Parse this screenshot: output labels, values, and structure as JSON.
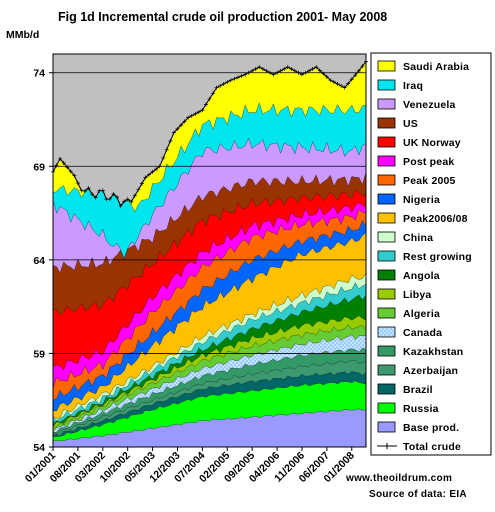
{
  "chart_data": {
    "type": "area",
    "title": "Fig 1d Incremental crude oil production 2001- May 2008",
    "ylabel": "MMb/d",
    "xlabel": "",
    "ylim": [
      54,
      75
    ],
    "yticks": [
      54,
      59,
      64,
      69,
      74
    ],
    "grid": "horizontal",
    "legend_placement": "right",
    "x_tick_labels": [
      "01/2001",
      "08/2001",
      "03/2002",
      "10/2002",
      "05/2003",
      "12/2003",
      "07/2004",
      "02/2005",
      "09/2005",
      "04/2006",
      "11/2006",
      "06/2007",
      "01/2008"
    ],
    "x_tick_months": [
      0,
      7,
      14,
      21,
      28,
      35,
      42,
      49,
      56,
      63,
      70,
      77,
      84
    ],
    "x_month_count": 89,
    "notes": [
      "www.theoildrum.com",
      "Source of data: EIA"
    ],
    "stack_order": [
      "Base prod.",
      "Russia",
      "Brazil",
      "Azerbaijan",
      "Kazakhstan",
      "Canada",
      "Algeria",
      "Libya",
      "Angola",
      "Rest growing",
      "China",
      "Peak2006/08",
      "Nigeria",
      "Peak 2005",
      "Post peak",
      "UK Norway",
      "US",
      "Venezuela",
      "Iraq",
      "Saudi Arabia"
    ],
    "legend": [
      {
        "name": "Saudi Arabia",
        "color": "#ffff00",
        "pattern": "solid"
      },
      {
        "name": "Iraq",
        "color": "#00e5ee",
        "pattern": "solid"
      },
      {
        "name": "Venezuela",
        "color": "#cc99ff",
        "pattern": "solid"
      },
      {
        "name": "US",
        "color": "#993300",
        "pattern": "solid"
      },
      {
        "name": "UK Norway",
        "color": "#ff0000",
        "pattern": "solid"
      },
      {
        "name": "Post peak",
        "color": "#ff00ff",
        "pattern": "solid"
      },
      {
        "name": "Peak 2005",
        "color": "#ff6600",
        "pattern": "solid"
      },
      {
        "name": "Nigeria",
        "color": "#0066ff",
        "pattern": "solid"
      },
      {
        "name": "Peak2006/08",
        "color": "#ffc000",
        "pattern": "solid"
      },
      {
        "name": "China",
        "color": "#ccffcc",
        "pattern": "solid"
      },
      {
        "name": "Rest growing",
        "color": "#33cccc",
        "pattern": "solid"
      },
      {
        "name": "Angola",
        "color": "#008000",
        "pattern": "solid"
      },
      {
        "name": "Libya",
        "color": "#99cc00",
        "pattern": "solid"
      },
      {
        "name": "Algeria",
        "color": "#66cc33",
        "pattern": "solid"
      },
      {
        "name": "Canada",
        "color": "#99ccff",
        "pattern": "dotted"
      },
      {
        "name": "Kazakhstan",
        "color": "#339966",
        "pattern": "solid"
      },
      {
        "name": "Azerbaijan",
        "color": "#3d9970",
        "pattern": "solid"
      },
      {
        "name": "Brazil",
        "color": "#006666",
        "pattern": "solid"
      },
      {
        "name": "Russia",
        "color": "#00ff00",
        "pattern": "solid"
      },
      {
        "name": "Base prod.",
        "color": "#9999ff",
        "pattern": "solid"
      },
      {
        "name": "Total crude",
        "color": "#000000",
        "pattern": "line-cross"
      }
    ],
    "plot_background_color": "#c0c0c0",
    "series_keypoints_note": "cumulative top of each stacked band, MMb/d, at month index [month, value]",
    "cumulative_tops": {
      "Base prod.": [
        [
          0,
          54.3
        ],
        [
          14,
          54.6
        ],
        [
          28,
          55.0
        ],
        [
          42,
          55.4
        ],
        [
          56,
          55.6
        ],
        [
          70,
          55.8
        ],
        [
          84,
          56.0
        ],
        [
          88,
          56.0
        ]
      ],
      "Russia": [
        [
          0,
          54.5
        ],
        [
          14,
          55.2
        ],
        [
          28,
          56.0
        ],
        [
          42,
          56.7
        ],
        [
          56,
          57.0
        ],
        [
          70,
          57.3
        ],
        [
          84,
          57.5
        ],
        [
          88,
          57.4
        ]
      ],
      "Brazil": [
        [
          0,
          54.6
        ],
        [
          14,
          55.4
        ],
        [
          28,
          56.3
        ],
        [
          42,
          57.1
        ],
        [
          56,
          57.5
        ],
        [
          70,
          57.8
        ],
        [
          84,
          58.0
        ],
        [
          88,
          57.9
        ]
      ],
      "Azerbaijan": [
        [
          0,
          54.7
        ],
        [
          14,
          55.6
        ],
        [
          28,
          56.5
        ],
        [
          42,
          57.4
        ],
        [
          56,
          57.9
        ],
        [
          70,
          58.3
        ],
        [
          84,
          58.6
        ],
        [
          88,
          58.5
        ]
      ],
      "Kazakhstan": [
        [
          0,
          54.8
        ],
        [
          14,
          55.8
        ],
        [
          28,
          56.8
        ],
        [
          42,
          57.8
        ],
        [
          56,
          58.4
        ],
        [
          70,
          58.9
        ],
        [
          84,
          59.2
        ],
        [
          88,
          59.2
        ]
      ],
      "Canada": [
        [
          0,
          54.9
        ],
        [
          14,
          56.0
        ],
        [
          28,
          57.1
        ],
        [
          42,
          58.2
        ],
        [
          56,
          58.9
        ],
        [
          70,
          59.5
        ],
        [
          84,
          59.9
        ],
        [
          88,
          59.9
        ]
      ],
      "Algeria": [
        [
          0,
          55.0
        ],
        [
          14,
          56.2
        ],
        [
          28,
          57.4
        ],
        [
          42,
          58.6
        ],
        [
          56,
          59.4
        ],
        [
          70,
          60.0
        ],
        [
          84,
          60.4
        ],
        [
          88,
          60.4
        ]
      ],
      "Libya": [
        [
          0,
          55.1
        ],
        [
          14,
          56.3
        ],
        [
          28,
          57.6
        ],
        [
          42,
          58.9
        ],
        [
          56,
          59.8
        ],
        [
          70,
          60.5
        ],
        [
          84,
          60.9
        ],
        [
          88,
          60.9
        ]
      ],
      "Angola": [
        [
          0,
          55.2
        ],
        [
          14,
          56.4
        ],
        [
          28,
          57.8
        ],
        [
          42,
          59.2
        ],
        [
          56,
          60.3
        ],
        [
          70,
          61.2
        ],
        [
          84,
          61.9
        ],
        [
          88,
          62.1
        ]
      ],
      "Rest growing": [
        [
          0,
          55.4
        ],
        [
          14,
          56.6
        ],
        [
          28,
          58.1
        ],
        [
          42,
          59.6
        ],
        [
          56,
          60.8
        ],
        [
          70,
          61.7
        ],
        [
          84,
          62.5
        ],
        [
          88,
          62.7
        ]
      ],
      "China": [
        [
          0,
          55.5
        ],
        [
          14,
          56.8
        ],
        [
          28,
          58.3
        ],
        [
          42,
          59.9
        ],
        [
          56,
          61.1
        ],
        [
          70,
          62.1
        ],
        [
          84,
          63.0
        ],
        [
          88,
          63.1
        ]
      ],
      "Peak2006/08": [
        [
          0,
          56.0
        ],
        [
          14,
          57.2
        ],
        [
          28,
          59.4
        ],
        [
          42,
          61.5
        ],
        [
          56,
          63.0
        ],
        [
          70,
          64.3
        ],
        [
          84,
          65.0
        ],
        [
          88,
          65.3
        ]
      ],
      "Nigeria": [
        [
          0,
          56.6
        ],
        [
          14,
          57.8
        ],
        [
          28,
          60.1
        ],
        [
          42,
          62.4
        ],
        [
          56,
          64.0
        ],
        [
          70,
          65.0
        ],
        [
          84,
          65.6
        ],
        [
          88,
          65.9
        ]
      ],
      "Peak 2005": [
        [
          0,
          57.4
        ],
        [
          14,
          58.4
        ],
        [
          28,
          61.2
        ],
        [
          42,
          63.6
        ],
        [
          56,
          65.2
        ],
        [
          70,
          65.9
        ],
        [
          84,
          66.3
        ],
        [
          88,
          66.6
        ]
      ],
      "Post peak": [
        [
          0,
          58.2
        ],
        [
          14,
          59.1
        ],
        [
          28,
          62.0
        ],
        [
          42,
          64.4
        ],
        [
          56,
          65.8
        ],
        [
          70,
          66.4
        ],
        [
          84,
          66.8
        ],
        [
          88,
          67.0
        ]
      ],
      "UK Norway": [
        [
          0,
          61.2
        ],
        [
          14,
          61.6
        ],
        [
          28,
          63.8
        ],
        [
          42,
          66.1
        ],
        [
          56,
          67.0
        ],
        [
          70,
          67.3
        ],
        [
          84,
          67.5
        ],
        [
          88,
          67.6
        ]
      ],
      "US": [
        [
          0,
          63.6
        ],
        [
          14,
          63.8
        ],
        [
          28,
          65.2
        ],
        [
          42,
          67.4
        ],
        [
          56,
          68.2
        ],
        [
          70,
          68.2
        ],
        [
          84,
          68.3
        ],
        [
          88,
          68.4
        ]
      ],
      "Venezuela": [
        [
          0,
          67.0
        ],
        [
          14,
          65.3
        ],
        [
          20,
          64.2
        ],
        [
          28,
          66.4
        ],
        [
          42,
          69.8
        ],
        [
          56,
          70.2
        ],
        [
          70,
          70.0
        ],
        [
          84,
          69.8
        ],
        [
          88,
          70.1
        ]
      ],
      "Iraq": [
        [
          0,
          67.8
        ],
        [
          14,
          67.5
        ],
        [
          24,
          66.8
        ],
        [
          28,
          67.8
        ],
        [
          42,
          71.2
        ],
        [
          56,
          72.0
        ],
        [
          70,
          72.0
        ],
        [
          84,
          72.0
        ],
        [
          88,
          72.1
        ]
      ],
      "Saudi Arabia": [
        [
          0,
          68.7
        ],
        [
          2,
          69.4
        ],
        [
          6,
          68.5
        ],
        [
          10,
          66.9
        ],
        [
          14,
          67.4
        ],
        [
          19,
          66.6
        ],
        [
          22,
          67.1
        ],
        [
          26,
          68.4
        ],
        [
          30,
          69.0
        ],
        [
          34,
          70.8
        ],
        [
          38,
          71.6
        ],
        [
          42,
          72.0
        ],
        [
          46,
          73.2
        ],
        [
          50,
          73.6
        ],
        [
          54,
          73.9
        ],
        [
          58,
          74.3
        ],
        [
          62,
          73.9
        ],
        [
          66,
          74.3
        ],
        [
          70,
          73.9
        ],
        [
          74,
          74.3
        ],
        [
          78,
          73.6
        ],
        [
          82,
          73.2
        ],
        [
          86,
          74.1
        ],
        [
          88,
          74.6
        ]
      ]
    }
  }
}
